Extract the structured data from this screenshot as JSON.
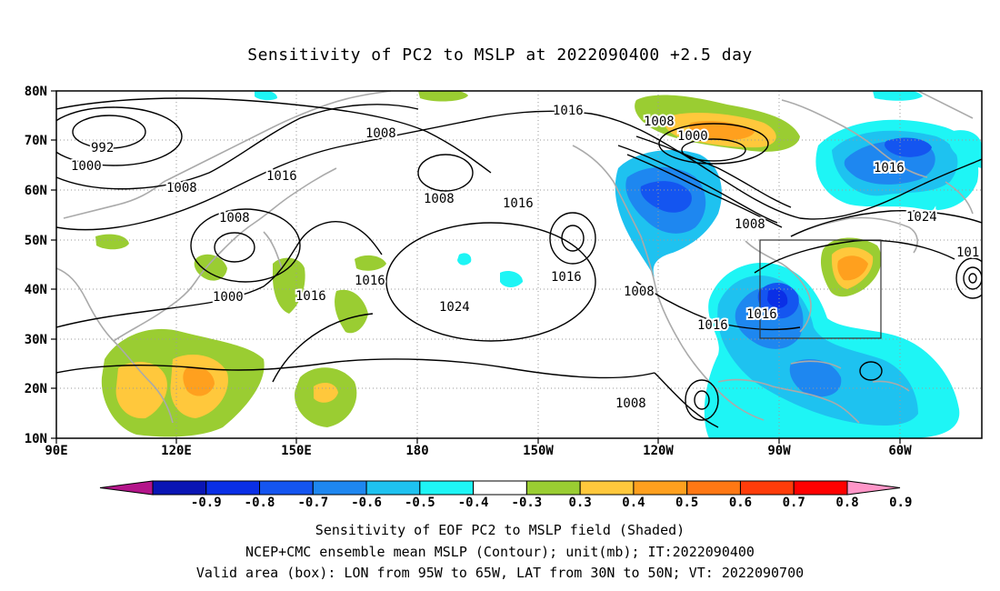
{
  "title": "Sensitivity of PC2 to MSLP at 2022090400 +2.5 day",
  "lat_ticks": [
    "80N",
    "70N",
    "60N",
    "50N",
    "40N",
    "30N",
    "20N",
    "10N"
  ],
  "lon_ticks": [
    "90E",
    "120E",
    "150E",
    "180",
    "150W",
    "120W",
    "90W",
    "60W"
  ],
  "contour_labels": [
    "992",
    "1000",
    "1008",
    "1000",
    "1008",
    "1016",
    "1008",
    "1016",
    "1016",
    "1024",
    "1016",
    "1016",
    "1008",
    "1016",
    "1008",
    "1000",
    "1016",
    "1024",
    "1008",
    "1016",
    "1016",
    "1008",
    "1008",
    "101"
  ],
  "colorbar": {
    "ticks": [
      "-0.9",
      "-0.8",
      "-0.7",
      "-0.6",
      "-0.5",
      "-0.4",
      "-0.3",
      "0.3",
      "0.4",
      "0.5",
      "0.6",
      "0.7",
      "0.8",
      "0.9"
    ],
    "colors": [
      "#b4158a",
      "#0a15b4",
      "#0a2fe6",
      "#1455f0",
      "#1e87f0",
      "#1ec2f0",
      "#1ef5f5",
      "#ffffff",
      "#9acd32",
      "#ffc83c",
      "#ffa01e",
      "#ff7814",
      "#ff3c0a",
      "#ff0000",
      "#ff96c8"
    ]
  },
  "footer": {
    "line1": "Sensitivity of EOF PC2 to MSLP field (Shaded)",
    "line2": "NCEP+CMC ensemble mean MSLP (Contour); unit(mb); IT:2022090400",
    "line3": "Valid area (box): LON from 95W to 65W, LAT from 30N to 50N; VT: 2022090700"
  }
}
